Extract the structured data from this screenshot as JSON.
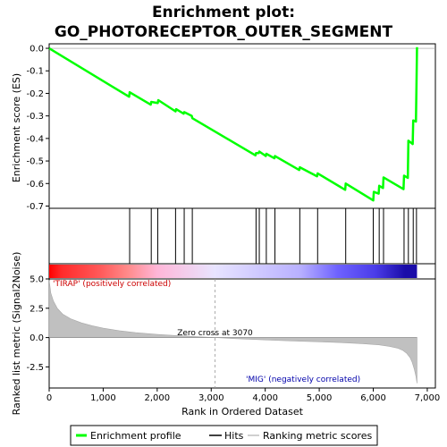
{
  "chart_data": {
    "type": "line",
    "title_line1": "Enrichment plot:",
    "title_line2": "GO_PHOTORECEPTOR_OUTER_SEGMENT",
    "xlabel": "Rank in Ordered Dataset",
    "es_ylabel": "Enrichment score (ES)",
    "metric_ylabel": "Ranked list metric (Signal2Noise)",
    "xlim": [
      0,
      7150
    ],
    "es_ylim": [
      -0.71,
      0.02
    ],
    "metric_ylim": [
      -4.3,
      5.0
    ],
    "x_ticks": [
      0,
      1000,
      2000,
      3000,
      4000,
      5000,
      6000,
      7000
    ],
    "x_tick_labels": [
      "0",
      "1,000",
      "2,000",
      "3,000",
      "4,000",
      "5,000",
      "6,000",
      "7,000"
    ],
    "es_ticks": [
      0.0,
      -0.1,
      -0.2,
      -0.3,
      -0.4,
      -0.5,
      -0.6,
      -0.7
    ],
    "es_tick_labels": [
      "0.0",
      "-0.1",
      "-0.2",
      "-0.3",
      "-0.4",
      "-0.5",
      "-0.6",
      "-0.7"
    ],
    "metric_ticks": [
      5.0,
      2.5,
      0.0,
      -2.5
    ],
    "metric_tick_labels": [
      "5.0",
      "2.5",
      "0.0",
      "-2.5"
    ],
    "es_series": {
      "name": "Enrichment profile",
      "x": [
        0,
        1480,
        1490,
        1880,
        1890,
        2010,
        2020,
        2340,
        2350,
        2490,
        2500,
        2640,
        2650,
        3820,
        3830,
        3880,
        3890,
        4010,
        4020,
        4170,
        4180,
        4630,
        4640,
        4960,
        4970,
        5480,
        5490,
        6000,
        6010,
        6100,
        6110,
        6180,
        6190,
        6560,
        6570,
        6640,
        6650,
        6730,
        6740,
        6790,
        6800,
        6810
      ],
      "y": [
        0.0,
        -0.215,
        -0.195,
        -0.25,
        -0.238,
        -0.243,
        -0.23,
        -0.28,
        -0.27,
        -0.29,
        -0.283,
        -0.3,
        -0.31,
        -0.475,
        -0.465,
        -0.465,
        -0.458,
        -0.478,
        -0.468,
        -0.488,
        -0.478,
        -0.54,
        -0.528,
        -0.568,
        -0.555,
        -0.628,
        -0.6,
        -0.675,
        -0.637,
        -0.645,
        -0.61,
        -0.62,
        -0.573,
        -0.625,
        -0.565,
        -0.575,
        -0.41,
        -0.425,
        -0.32,
        -0.325,
        -0.165,
        0.005
      ]
    },
    "hits": [
      1490,
      1890,
      2010,
      2340,
      2500,
      2650,
      3830,
      3890,
      4020,
      4180,
      4640,
      4970,
      5490,
      6000,
      6110,
      6190,
      6570,
      6650,
      6740,
      6800
    ],
    "metric_series": {
      "name": "Ranking metric scores",
      "x": [
        0,
        30,
        80,
        150,
        250,
        400,
        600,
        800,
        1000,
        1300,
        1600,
        2000,
        2400,
        2800,
        3070,
        3400,
        3800,
        4200,
        4600,
        5000,
        5400,
        5800,
        6100,
        6300,
        6450,
        6550,
        6620,
        6680,
        6720,
        6760,
        6790,
        6810
      ],
      "y": [
        4.9,
        3.8,
        3.1,
        2.5,
        2.0,
        1.6,
        1.25,
        1.0,
        0.8,
        0.58,
        0.42,
        0.27,
        0.16,
        0.06,
        0.0,
        -0.08,
        -0.16,
        -0.24,
        -0.3,
        -0.36,
        -0.43,
        -0.52,
        -0.62,
        -0.75,
        -0.9,
        -1.1,
        -1.35,
        -1.7,
        -2.1,
        -2.7,
        -3.3,
        -3.9
      ]
    },
    "zero_cross_x": 3070,
    "zero_cross_label": "Zero cross at 3070",
    "pos_label": "'TIRAP' (positively correlated)",
    "neg_label": "'MIG' (negatively correlated)",
    "heatmap_stops": [
      {
        "x": 0,
        "color": "#ff0000"
      },
      {
        "x": 230,
        "color": "#ff2a2a"
      },
      {
        "x": 950,
        "color": "#ff5a5a"
      },
      {
        "x": 1450,
        "color": "#ff8a8a"
      },
      {
        "x": 2000,
        "color": "#ffb6d8"
      },
      {
        "x": 3060,
        "color": "#e8e4ff"
      },
      {
        "x": 4650,
        "color": "#b8b0ff"
      },
      {
        "x": 5340,
        "color": "#6e62ff"
      },
      {
        "x": 6040,
        "color": "#4a3ce8"
      },
      {
        "x": 6590,
        "color": "#1a0ca8"
      },
      {
        "x": 6810,
        "color": "#1a0ca8"
      }
    ],
    "legend": [
      {
        "label": "Enrichment profile",
        "color": "#00ff00"
      },
      {
        "label": "Hits",
        "color": "#000000"
      },
      {
        "label": "Ranking metric scores",
        "color": "#c0c0c0"
      }
    ],
    "colors": {
      "es_line": "#00ff00",
      "hit": "#000000",
      "metric_fill": "#c0c0c0",
      "pos_text": "#cc0000",
      "neg_text": "#0000aa"
    }
  }
}
